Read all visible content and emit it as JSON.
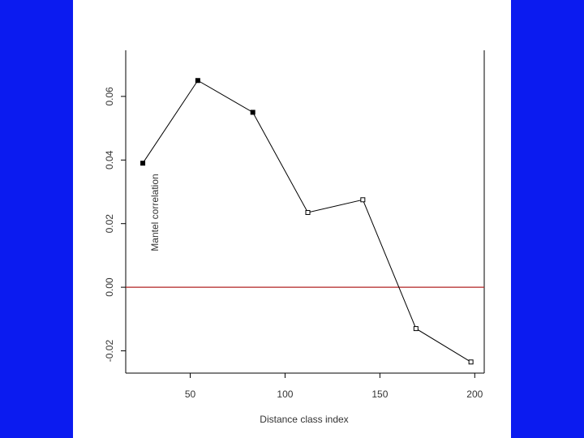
{
  "background_color": "#0b1bf0",
  "chart_data": {
    "type": "line",
    "title": "",
    "xlabel": "Distance class index",
    "ylabel": "Mantel correlation",
    "xlim": [
      16,
      205
    ],
    "ylim": [
      -0.027,
      0.0745
    ],
    "x_ticks": [
      50,
      100,
      150,
      200
    ],
    "x_tick_labels": [
      "50",
      "100",
      "150",
      "200"
    ],
    "y_ticks": [
      -0.02,
      0.0,
      0.02,
      0.04,
      0.06
    ],
    "y_tick_labels": [
      "-0.02",
      "0.00",
      "0.02",
      "0.04",
      "0.06"
    ],
    "grid": false,
    "reference_line": {
      "y": 0.0,
      "color": "#b22222"
    },
    "series": [
      {
        "x": [
          25,
          54,
          83,
          112,
          141,
          169,
          198
        ],
        "y": [
          0.039,
          0.065,
          0.055,
          0.0235,
          0.0275,
          -0.013,
          -0.0235
        ],
        "filled": [
          true,
          true,
          true,
          false,
          false,
          false,
          false
        ],
        "color": "#000000"
      }
    ]
  }
}
